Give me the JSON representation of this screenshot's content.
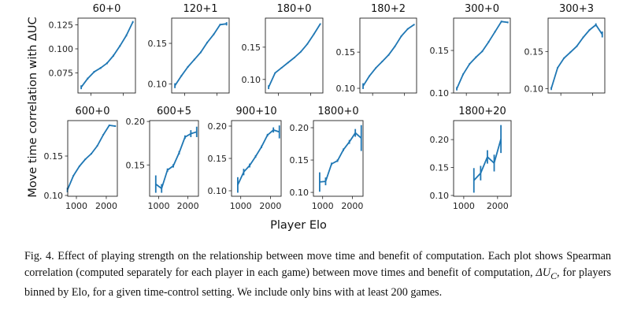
{
  "figure": {
    "ylabel": "Move time correlation with ΔUC",
    "xlabel": "Player Elo",
    "line_color": "#1f77b4"
  },
  "caption": {
    "label": "Fig. 4.",
    "text_before": "Effect of playing strength on the relationship between move time and benefit of computation. Each plot shows Spearman correlation (computed separately for each player in each game) between move times and benefit of computation, ",
    "symbol": "ΔU",
    "symbol_sub": "C",
    "text_after": ", for players binned by Elo, for a given time-control setting. We include only bins with at least 200 games."
  },
  "chart_data": [
    {
      "type": "line",
      "title": "60+0",
      "xlim": [
        600,
        2380
      ],
      "ylim": [
        0.054,
        0.132
      ],
      "yticks": [
        0.075,
        0.1,
        0.125
      ],
      "ytick_labels": [
        "0.075",
        "0.100",
        "0.125"
      ],
      "xticks": [
        1000,
        2000
      ],
      "xtick_labels": [],
      "x": [
        700,
        900,
        1100,
        1300,
        1500,
        1700,
        1900,
        2100,
        2300
      ],
      "y": [
        0.06,
        0.069,
        0.076,
        0.08,
        0.085,
        0.093,
        0.103,
        0.114,
        0.128
      ],
      "err": [
        0.002,
        0.001,
        0.001,
        0.001,
        0.001,
        0.001,
        0.001,
        0.001,
        0.001
      ]
    },
    {
      "type": "line",
      "title": "120+1",
      "xlim": [
        600,
        2380
      ],
      "ylim": [
        0.089,
        0.181
      ],
      "yticks": [
        0.1,
        0.15
      ],
      "ytick_labels": [
        "0.10",
        "0.15"
      ],
      "xticks": [
        1000,
        2000
      ],
      "xtick_labels": [],
      "x": [
        700,
        900,
        1100,
        1300,
        1500,
        1700,
        1900,
        2100,
        2300
      ],
      "y": [
        0.098,
        0.11,
        0.121,
        0.13,
        0.139,
        0.151,
        0.161,
        0.173,
        0.174
      ],
      "err": [
        0.003,
        0.001,
        0.001,
        0.001,
        0.001,
        0.001,
        0.001,
        0.001,
        0.002
      ]
    },
    {
      "type": "line",
      "title": "180+0",
      "xlim": [
        600,
        2380
      ],
      "ylim": [
        0.079,
        0.195
      ],
      "yticks": [
        0.1,
        0.15
      ],
      "ytick_labels": [
        "0.10",
        "0.15"
      ],
      "xticks": [
        1000,
        2000
      ],
      "xtick_labels": [],
      "x": [
        700,
        900,
        1100,
        1300,
        1500,
        1700,
        1900,
        2100,
        2300
      ],
      "y": [
        0.088,
        0.11,
        0.118,
        0.126,
        0.134,
        0.143,
        0.155,
        0.17,
        0.186
      ],
      "err": [
        0.003,
        0.001,
        0.001,
        0.001,
        0.001,
        0.001,
        0.001,
        0.001,
        0.001
      ]
    },
    {
      "type": "line",
      "title": "180+2",
      "xlim": [
        600,
        2380
      ],
      "ylim": [
        0.0935,
        0.197
      ],
      "yticks": [
        0.1,
        0.15
      ],
      "ytick_labels": [
        "0.10",
        "0.15"
      ],
      "xticks": [
        1000,
        2000
      ],
      "xtick_labels": [],
      "x": [
        700,
        900,
        1100,
        1300,
        1500,
        1700,
        1900,
        2100,
        2300
      ],
      "y": [
        0.103,
        0.117,
        0.128,
        0.137,
        0.146,
        0.158,
        0.172,
        0.182,
        0.188
      ],
      "err": [
        0.004,
        0.001,
        0.001,
        0.001,
        0.001,
        0.001,
        0.001,
        0.001,
        0.001
      ]
    },
    {
      "type": "line",
      "title": "300+0",
      "xlim": [
        600,
        2380
      ],
      "ylim": [
        0.1,
        0.188
      ],
      "yticks": [
        0.1,
        0.15
      ],
      "ytick_labels": [
        "0.10",
        "0.15"
      ],
      "xticks": [
        1000,
        2000
      ],
      "xtick_labels": [],
      "x": [
        700,
        900,
        1100,
        1300,
        1500,
        1700,
        1900,
        2100,
        2300
      ],
      "y": [
        0.105,
        0.122,
        0.134,
        0.142,
        0.149,
        0.16,
        0.172,
        0.184,
        0.183
      ],
      "err": [
        0.002,
        0.001,
        0.001,
        0.001,
        0.001,
        0.001,
        0.001,
        0.001,
        0.001
      ]
    },
    {
      "type": "line",
      "title": "300+3",
      "xlim": [
        600,
        2380
      ],
      "ylim": [
        0.094,
        0.195
      ],
      "yticks": [
        0.1,
        0.15
      ],
      "ytick_labels": [
        "0.10",
        "0.15"
      ],
      "xticks": [
        1000,
        2000
      ],
      "xtick_labels": [],
      "x": [
        700,
        900,
        1100,
        1300,
        1500,
        1700,
        1900,
        2100,
        2300
      ],
      "y": [
        0.1,
        0.128,
        0.141,
        0.149,
        0.157,
        0.169,
        0.179,
        0.186,
        0.173
      ],
      "err": [
        0.002,
        0.001,
        0.001,
        0.001,
        0.001,
        0.001,
        0.001,
        0.002,
        0.004
      ]
    },
    {
      "type": "line",
      "title": "600+0",
      "xlim": [
        710,
        2370
      ],
      "ylim": [
        0.099,
        0.195
      ],
      "yticks": [
        0.1,
        0.15
      ],
      "ytick_labels": [
        "0.10",
        "0.15"
      ],
      "xticks": [
        1000,
        2000
      ],
      "xtick_labels": [
        "1000",
        "2000"
      ],
      "x": [
        700,
        900,
        1100,
        1300,
        1500,
        1700,
        1900,
        2100,
        2300
      ],
      "y": [
        0.107,
        0.125,
        0.137,
        0.146,
        0.153,
        0.163,
        0.177,
        0.189,
        0.188
      ],
      "err": [
        0.003,
        0.001,
        0.001,
        0.001,
        0.001,
        0.001,
        0.001,
        0.001,
        0.001
      ]
    },
    {
      "type": "line",
      "title": "600+5",
      "xlim": [
        690,
        2360
      ],
      "ylim": [
        0.114,
        0.201
      ],
      "yticks": [
        0.15,
        0.2
      ],
      "ytick_labels": [
        "0.15",
        "0.20"
      ],
      "xticks": [
        1000,
        2000
      ],
      "xtick_labels": [
        "1000",
        "2000"
      ],
      "x": [
        900,
        1100,
        1300,
        1500,
        1700,
        1900,
        2100,
        2300
      ],
      "y": [
        0.128,
        0.123,
        0.144,
        0.149,
        0.164,
        0.182,
        0.186,
        0.188
      ],
      "err": [
        0.01,
        0.005,
        0.002,
        0.002,
        0.002,
        0.002,
        0.004,
        0.006
      ]
    },
    {
      "type": "line",
      "title": "900+10",
      "xlim": [
        690,
        2360
      ],
      "ylim": [
        0.0915,
        0.2085
      ],
      "yticks": [
        0.1,
        0.15,
        0.2
      ],
      "ytick_labels": [
        "0.10",
        "0.15",
        "0.20"
      ],
      "xticks": [
        1000,
        2000
      ],
      "xtick_labels": [
        "1000",
        "2000"
      ],
      "x": [
        900,
        1100,
        1300,
        1500,
        1700,
        1900,
        2100,
        2300
      ],
      "y": [
        0.109,
        0.129,
        0.139,
        0.153,
        0.168,
        0.186,
        0.194,
        0.191
      ],
      "err": [
        0.012,
        0.005,
        0.003,
        0.002,
        0.002,
        0.002,
        0.004,
        0.01
      ]
    },
    {
      "type": "line",
      "title": "1800+0",
      "xlim": [
        690,
        2360
      ],
      "ylim": [
        0.094,
        0.211
      ],
      "yticks": [
        0.1,
        0.15,
        0.2
      ],
      "ytick_labels": [
        "0.10",
        "0.15",
        "0.20"
      ],
      "xticks": [
        1000,
        2000
      ],
      "xtick_labels": [
        "1000",
        "2000"
      ],
      "x": [
        900,
        1100,
        1300,
        1500,
        1700,
        1900,
        2100,
        2300
      ],
      "y": [
        0.116,
        0.117,
        0.144,
        0.149,
        0.166,
        0.178,
        0.192,
        0.184
      ],
      "err": [
        0.015,
        0.006,
        0.002,
        0.002,
        0.002,
        0.003,
        0.006,
        0.02
      ]
    },
    {
      "type": "line",
      "title": "1800+20",
      "xlim": [
        700,
        2400
      ],
      "ylim": [
        0.0986,
        0.234
      ],
      "yticks": [
        0.1,
        0.15,
        0.2
      ],
      "ytick_labels": [
        "0.10",
        "0.15",
        "0.20"
      ],
      "xticks": [
        1000,
        2000
      ],
      "xtick_labels": [
        "1000",
        "2000"
      ],
      "x": [
        1300,
        1500,
        1700,
        1900,
        2100
      ],
      "y": [
        0.127,
        0.14,
        0.169,
        0.158,
        0.201
      ],
      "err": [
        0.022,
        0.013,
        0.012,
        0.015,
        0.025
      ]
    }
  ]
}
